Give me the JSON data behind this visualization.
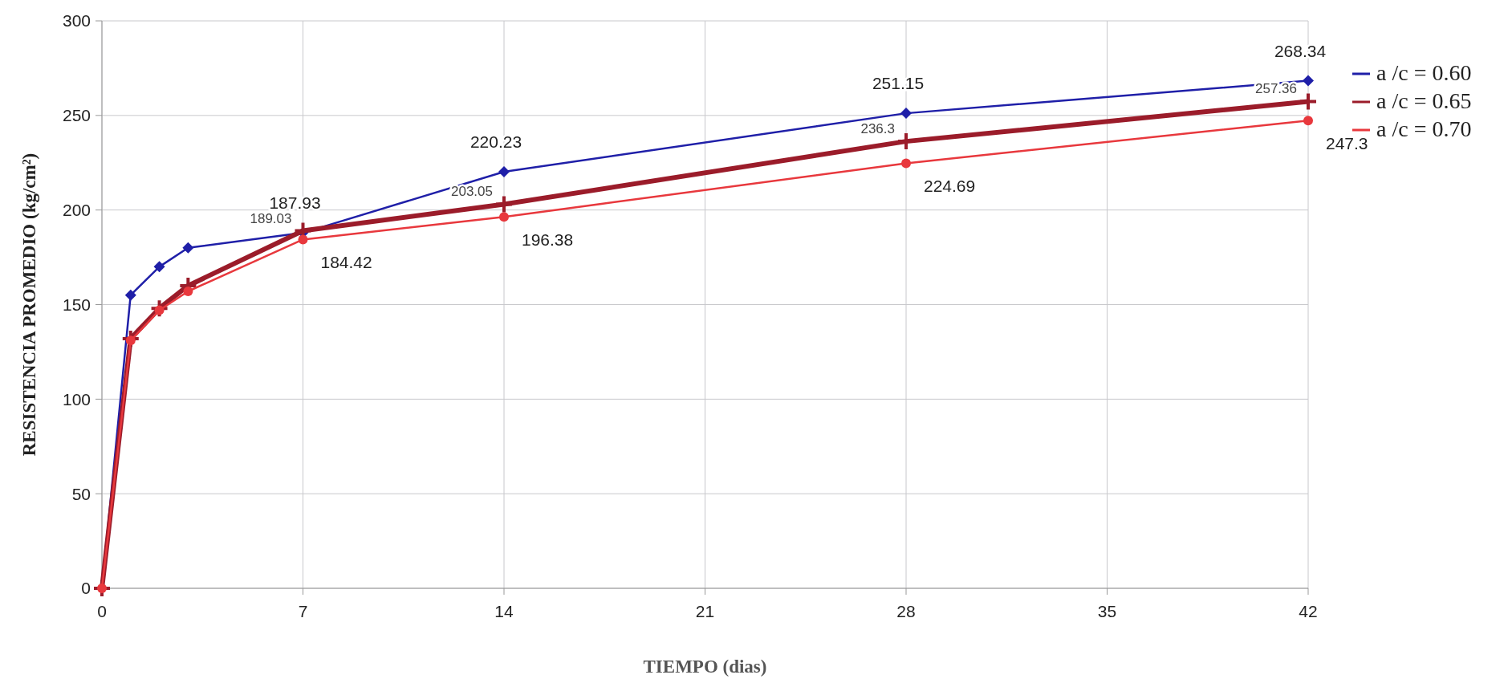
{
  "chart_data": {
    "type": "line",
    "xlabel": "TIEMPO (dias)",
    "ylabel": "RESISTENCIA PROMEDIO (kg/cm²)",
    "xlim": [
      0,
      42
    ],
    "xticks": [
      0,
      7,
      14,
      21,
      28,
      35,
      42
    ],
    "ylim": [
      0,
      300
    ],
    "yticks": [
      0,
      50,
      100,
      150,
      200,
      250,
      300
    ],
    "grid": true,
    "legend": "right",
    "x": [
      0,
      1,
      2,
      3,
      7,
      14,
      28,
      42
    ],
    "series": [
      {
        "name": "a /c = 0.60",
        "color": "#1f1fa8",
        "marker": "diamond",
        "values": [
          0,
          155,
          170,
          180,
          187.93,
          220.23,
          251.15,
          268.34
        ],
        "value_labels": [
          null,
          null,
          null,
          null,
          "187.93",
          "220.23",
          "251.15",
          "268.34"
        ]
      },
      {
        "name": "a /c = 0.65",
        "color": "#9b1c2a",
        "marker": "cross",
        "values": [
          0,
          132,
          148,
          160,
          189.03,
          203.05,
          236.3,
          257.36
        ],
        "value_labels": [
          null,
          null,
          null,
          null,
          "189.03",
          "203.05",
          "236.3",
          "257.36"
        ]
      },
      {
        "name": "a /c = 0.70",
        "color": "#e8383d",
        "marker": "circle",
        "values": [
          0,
          131,
          147,
          157,
          184.42,
          196.38,
          224.69,
          247.3
        ],
        "value_labels": [
          null,
          null,
          null,
          null,
          "184.42",
          "196.38",
          "224.69",
          "247.3"
        ]
      }
    ]
  }
}
